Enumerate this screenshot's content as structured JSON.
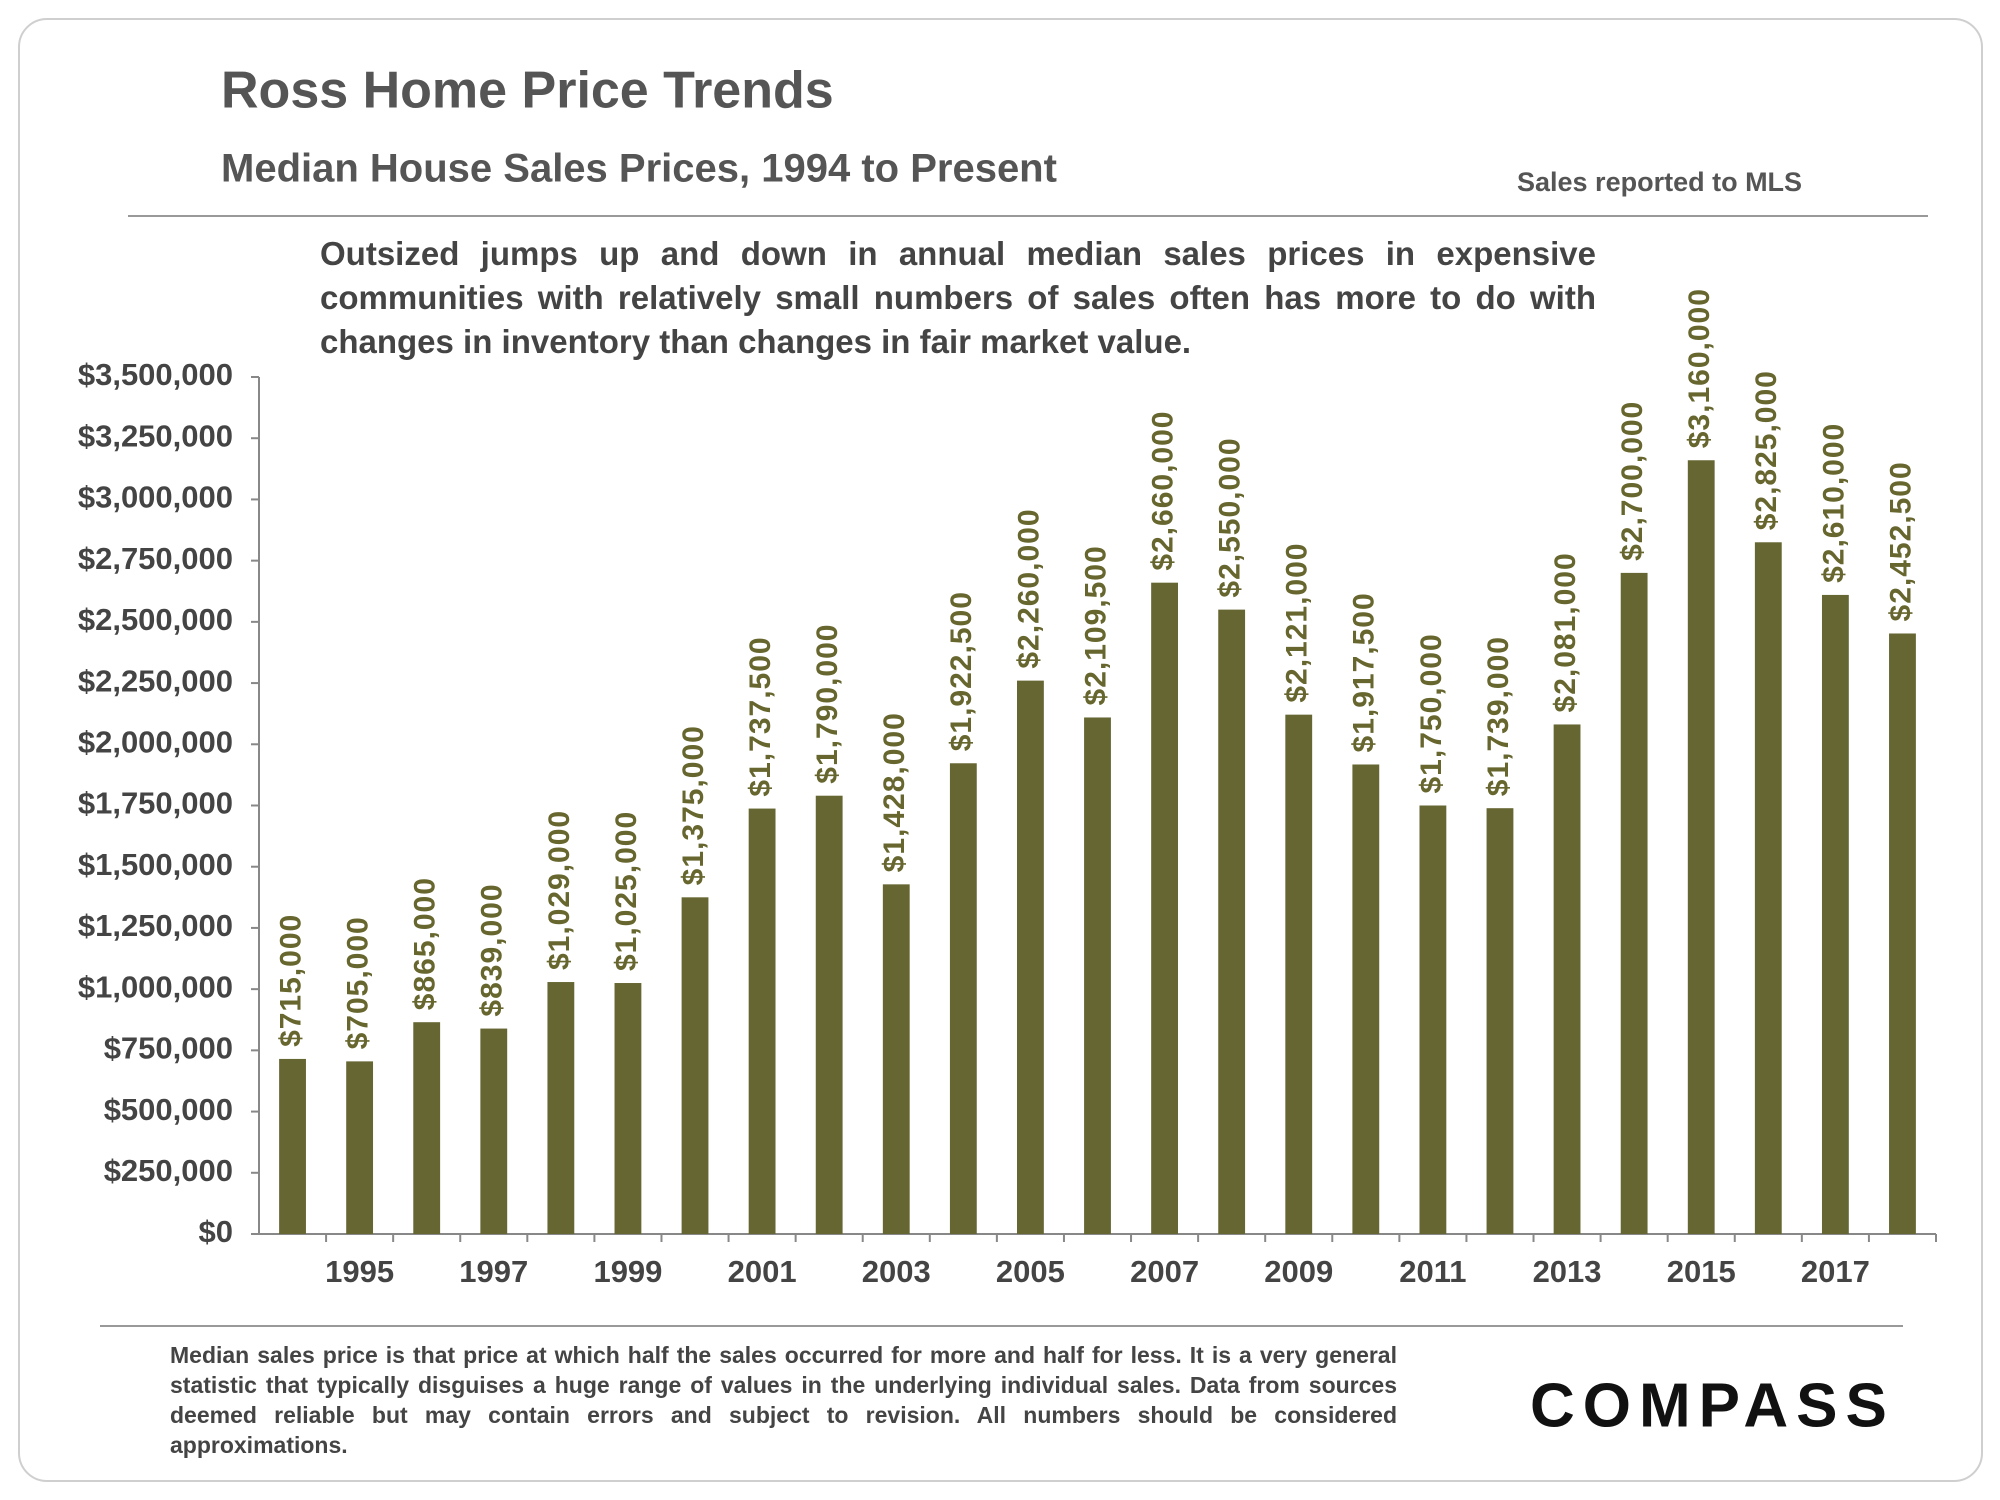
{
  "chart_data": {
    "type": "bar",
    "title": "Ross Home Price Trends",
    "subtitle": "Median House Sales Prices, 1994 to Present",
    "source": "Sales reported to MLS",
    "annotation": "Outsized jumps up and down in annual median sales prices in expensive communities with relatively small numbers of sales often has more to do with changes in inventory than changes in fair market value.",
    "footnote": "Median sales price is that price at which half the sales occurred for more and half for less. It is a very general statistic that typically disguises a huge range of values in the underlying individual sales. Data from sources deemed reliable but may contain errors and subject to revision.  All numbers should be considered approximations.",
    "logo": "COMPASS",
    "categories": [
      null,
      "1995",
      null,
      "1997",
      null,
      "1999",
      null,
      "2001",
      null,
      "2003",
      null,
      "2005",
      null,
      "2007",
      null,
      "2009",
      null,
      "2011",
      null,
      "2013",
      null,
      "2015",
      null,
      "2017",
      null
    ],
    "values": [
      715000,
      705000,
      865000,
      839000,
      1029000,
      1025000,
      1375000,
      1737500,
      1790000,
      1428000,
      1922500,
      2260000,
      2109500,
      2660000,
      2550000,
      2121000,
      1917500,
      1750000,
      1739000,
      2081000,
      2700000,
      3160000,
      2825000,
      2610000,
      2452500
    ],
    "value_labels": [
      "$715,000",
      "$705,000",
      "$865,000",
      "$839,000",
      "$1,029,000",
      "$1,025,000",
      "$1,375,000",
      "$1,737,500",
      "$1,790,000",
      "$1,428,000",
      "$1,922,500",
      "$2,260,000",
      "$2,109,500",
      "$2,660,000",
      "$2,550,000",
      "$2,121,000",
      "$1,917,500",
      "$1,750,000",
      "$1,739,000",
      "$2,081,000",
      "$2,700,000",
      "$3,160,000",
      "$2,825,000",
      "$2,610,000",
      "$2,452,500"
    ],
    "color": "#666633",
    "ylim": [
      0,
      3500000
    ],
    "yticks": [
      {
        "value": 0,
        "label": "$0"
      },
      {
        "value": 250000,
        "label": "$250,000"
      },
      {
        "value": 500000,
        "label": "$500,000"
      },
      {
        "value": 750000,
        "label": "$750,000"
      },
      {
        "value": 1000000,
        "label": "$1,000,000"
      },
      {
        "value": 1250000,
        "label": "$1,250,000"
      },
      {
        "value": 1500000,
        "label": "$1,500,000"
      },
      {
        "value": 1750000,
        "label": "$1,750,000"
      },
      {
        "value": 2000000,
        "label": "$2,000,000"
      },
      {
        "value": 2250000,
        "label": "$2,250,000"
      },
      {
        "value": 2500000,
        "label": "$2,500,000"
      },
      {
        "value": 2750000,
        "label": "$2,750,000"
      },
      {
        "value": 3000000,
        "label": "$3,000,000"
      },
      {
        "value": 3250000,
        "label": "$3,250,000"
      },
      {
        "value": 3500000,
        "label": "$3,500,000"
      }
    ],
    "grid": false
  }
}
